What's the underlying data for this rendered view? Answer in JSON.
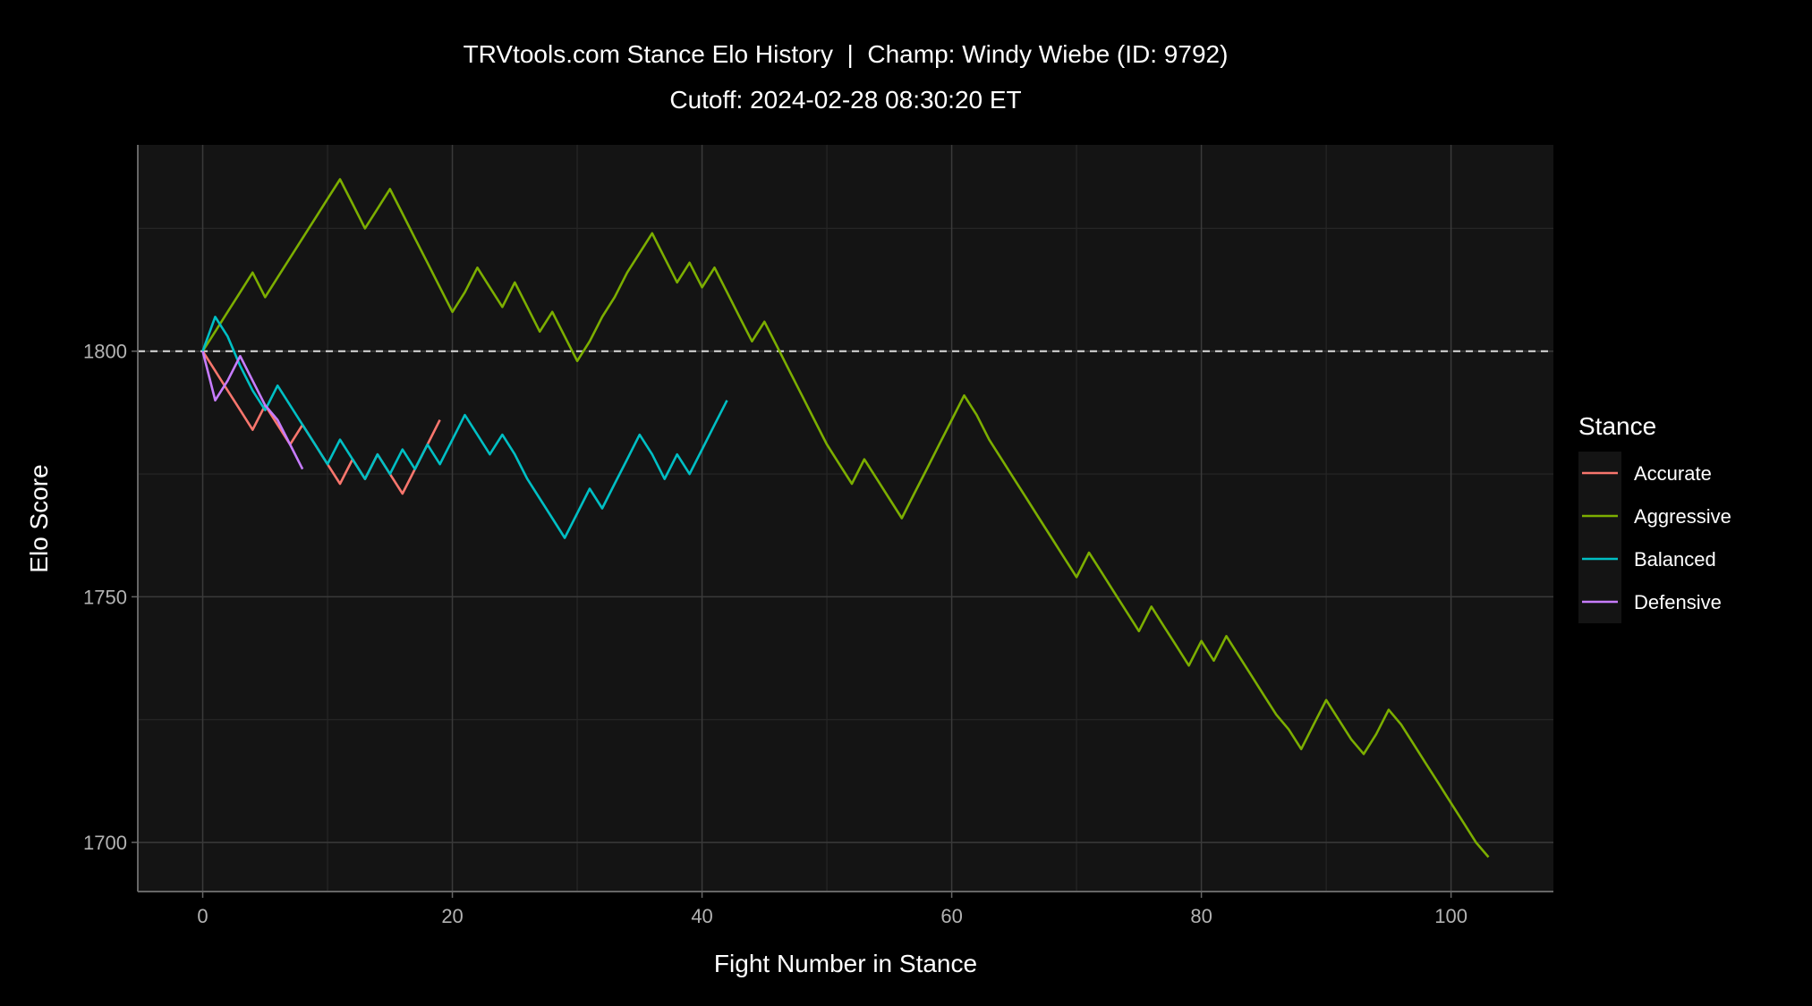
{
  "chart_data": {
    "type": "line",
    "title": "TRVtools.com Stance Elo History  |  Champ: Windy Wiebe (ID: 9792)",
    "subtitle": "Cutoff: 2024-02-28 08:30:20 ET",
    "xlabel": "Fight Number in Stance",
    "ylabel": "Elo Score",
    "xlim": [
      -5.2,
      108.2
    ],
    "ylim": [
      1690,
      1842
    ],
    "x_ticks": [
      0,
      20,
      40,
      60,
      80,
      100
    ],
    "y_ticks": [
      1700,
      1750,
      1800
    ],
    "reference_line": {
      "y": 1800,
      "style": "dashed"
    },
    "legend": {
      "title": "Stance",
      "position": "right"
    },
    "colors": {
      "background": "#000000",
      "panel": "#141414",
      "grid_major": "#3a3a3a",
      "grid_minor": "#262626",
      "text": "#ffffff",
      "tick_text": "#b3b3b3",
      "reference_line": "#dcdcdc"
    },
    "series": [
      {
        "name": "Accurate",
        "color": "#F8766D",
        "x": [
          0,
          1,
          2,
          3,
          4,
          5,
          6,
          7,
          8,
          9,
          10,
          11,
          12,
          13,
          14,
          15,
          16,
          17,
          18,
          19
        ],
        "y": [
          1800,
          1796,
          1792,
          1788,
          1784,
          1789,
          1785,
          1781,
          1785,
          1781,
          1777,
          1773,
          1778,
          1774,
          1779,
          1775,
          1771,
          1776,
          1781,
          1786
        ]
      },
      {
        "name": "Aggressive",
        "color": "#7CAE00",
        "x": [
          0,
          1,
          2,
          3,
          4,
          5,
          6,
          7,
          8,
          9,
          10,
          11,
          12,
          13,
          14,
          15,
          16,
          17,
          18,
          19,
          20,
          21,
          22,
          23,
          24,
          25,
          26,
          27,
          28,
          29,
          30,
          31,
          32,
          33,
          34,
          35,
          36,
          37,
          38,
          39,
          40,
          41,
          42,
          43,
          44,
          45,
          46,
          47,
          48,
          49,
          50,
          51,
          52,
          53,
          54,
          55,
          56,
          57,
          58,
          59,
          60,
          61,
          62,
          63,
          64,
          65,
          66,
          67,
          68,
          69,
          70,
          71,
          72,
          73,
          74,
          75,
          76,
          77,
          78,
          79,
          80,
          81,
          82,
          83,
          84,
          85,
          86,
          87,
          88,
          89,
          90,
          91,
          92,
          93,
          94,
          95,
          96,
          97,
          98,
          99,
          100,
          101,
          102,
          103
        ],
        "y": [
          1800,
          1804,
          1808,
          1812,
          1816,
          1811,
          1815,
          1819,
          1823,
          1827,
          1831,
          1835,
          1830,
          1825,
          1829,
          1833,
          1828,
          1823,
          1818,
          1813,
          1808,
          1812,
          1817,
          1813,
          1809,
          1814,
          1809,
          1804,
          1808,
          1803,
          1798,
          1802,
          1807,
          1811,
          1816,
          1820,
          1824,
          1819,
          1814,
          1818,
          1813,
          1817,
          1812,
          1807,
          1802,
          1806,
          1801,
          1796,
          1791,
          1786,
          1781,
          1777,
          1773,
          1778,
          1774,
          1770,
          1766,
          1771,
          1776,
          1781,
          1786,
          1791,
          1787,
          1782,
          1778,
          1774,
          1770,
          1766,
          1762,
          1758,
          1754,
          1759,
          1755,
          1751,
          1747,
          1743,
          1748,
          1744,
          1740,
          1736,
          1741,
          1737,
          1742,
          1738,
          1734,
          1730,
          1726,
          1723,
          1719,
          1724,
          1729,
          1725,
          1721,
          1718,
          1722,
          1727,
          1724,
          1720,
          1716,
          1712,
          1708,
          1704,
          1700,
          1697
        ]
      },
      {
        "name": "Balanced",
        "color": "#00BFC4",
        "x": [
          0,
          1,
          2,
          3,
          4,
          5,
          6,
          7,
          8,
          9,
          10,
          11,
          12,
          13,
          14,
          15,
          16,
          17,
          18,
          19,
          20,
          21,
          22,
          23,
          24,
          25,
          26,
          27,
          28,
          29,
          30,
          31,
          32,
          33,
          34,
          35,
          36,
          37,
          38,
          39,
          40,
          41,
          42
        ],
        "y": [
          1800,
          1807,
          1803,
          1797,
          1792,
          1788,
          1793,
          1789,
          1785,
          1781,
          1777,
          1782,
          1778,
          1774,
          1779,
          1775,
          1780,
          1776,
          1781,
          1777,
          1782,
          1787,
          1783,
          1779,
          1783,
          1779,
          1774,
          1770,
          1766,
          1762,
          1767,
          1772,
          1768,
          1773,
          1778,
          1783,
          1779,
          1774,
          1779,
          1775,
          1780,
          1785,
          1790
        ]
      },
      {
        "name": "Defensive",
        "color": "#C77CFF",
        "x": [
          0,
          1,
          2,
          3,
          4,
          5,
          6,
          7,
          8
        ],
        "y": [
          1800,
          1790,
          1794,
          1799,
          1794,
          1789,
          1786,
          1781,
          1776
        ]
      }
    ]
  }
}
